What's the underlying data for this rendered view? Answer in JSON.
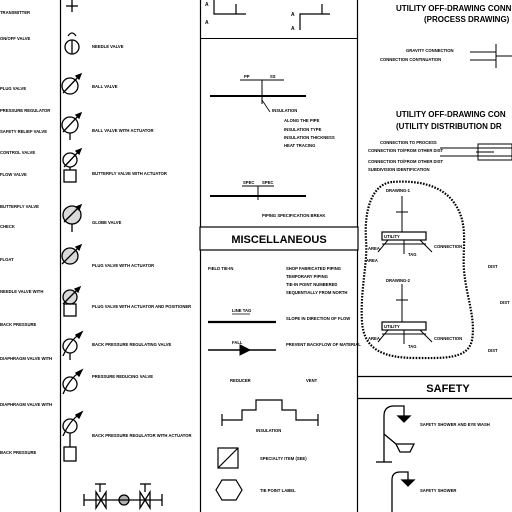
{
  "sections": {
    "misc_header": "MISCELLANEOUS",
    "safety_header": "SAFETY",
    "utility_process_title_line1": "UTILITY OFF-DRAWING CONN",
    "utility_process_title_line2": "(PROCESS DRAWING)",
    "utility_dist_title_line1": "UTILITY OFF-DRAWING CON",
    "utility_dist_title_line2": "(UTILITY DISTRIBUTION DR"
  },
  "left_column_labels": [
    "TRANSMITTER",
    "ON/OFF VALVE",
    "PLUG VALVE",
    "PRESSURE REGULATOR",
    "SAFETY RELIEF VALVE",
    "CONTROL VALVE",
    "FLOW VALVE",
    "BUTTERFLY VALVE",
    "CHECK",
    "FLOAT",
    "NEEDLE VALVE WITH",
    "BACK PRESSURE",
    "DIAPHRAGM VALVE WITH"
  ],
  "valve_column_labels": [
    "NEEDLE VALVE",
    "BALL VALVE",
    "BALL VALVE WITH ACTUATOR",
    "BUTTERFLY VALVE WITH ACTUATOR",
    "GLOBE VALVE",
    "PLUG VALVE WITH ACTUATOR",
    "PLUG VALVE WITH ACTUATOR AND POSITIONER",
    "BACK PRESSURE REGULATING VALVE",
    "PRESSURE REDUCING VALVE",
    "BACK PRESSURE REGULATOR WITH ACTUATOR"
  ],
  "center_column": {
    "insulation_labels": [
      "INSULATION",
      "ALONG THE PIPE",
      "INSULATION TYPE",
      "INSULATION THICKNESS",
      "HEAT TRACING"
    ],
    "pipe_tag_left": "PP",
    "pipe_tag_right": "SS",
    "spec_break_tag_left": "SPEC",
    "spec_break_tag_right": "SPEC",
    "spec_break_label": "PIPING SPECIFICATION BREAK",
    "field_label": "FIELD TIE-IN",
    "field_notes": [
      "SHOP FABRICATED PIPING",
      "TEMPORARY PIPING",
      "TIE-IN POINT NUMBERED",
      "SEQUENTIALLY FROM NORTH"
    ],
    "line_label_1": "LINE TAG",
    "line_note_1": "SLOPE IN DIRECTION OF FLOW",
    "line_label_2": "FALL",
    "line_note_2": "PREVENT BACKFLOW OF MATERIAL",
    "reducer_label_left": "REDUCER",
    "reducer_label_right": "VENT",
    "insulation_symbol_label": "INSULATION",
    "hatch_label": "SPECIALTY ITEM (SEE)",
    "hex_label": "TIE POINT LABEL"
  },
  "right_column": {
    "process_conn_labels": [
      "GRAVITY CONNECTION",
      "CONNECTION CONTINUATION"
    ],
    "dist_conn_labels": [
      "CONNECTION TO PROCESS",
      "CONNECTION TO/FROM OTHER DIST",
      "SUBDIVISION IDENTIFICATION"
    ],
    "group_1_label": "DRAWING-1",
    "group_2_label": "DRAWING-2",
    "box_labels": [
      "UTILITY",
      "UTILITY"
    ],
    "node_labels": [
      "AREA",
      "AREA",
      "TAG",
      "TAG",
      "CONNECTION"
    ],
    "side_labels": [
      "DIST",
      "DIST",
      "DIST"
    ],
    "safety_items": [
      "SAFETY SHOWER AND EYE WASH",
      "EYEWASH STATION",
      "SAFETY SHOWER"
    ]
  }
}
